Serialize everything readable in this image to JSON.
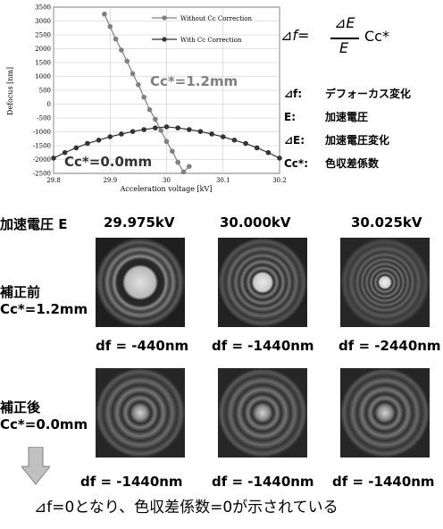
{
  "chart_data": {
    "type": "line",
    "xlabel": "Acceleration voltage [kV]",
    "ylabel": "Defocus [nm]",
    "xlim": [
      29.8,
      30.2
    ],
    "ylim": [
      -2500,
      3500
    ],
    "x_ticks": [
      "29.8",
      "29.9",
      "30",
      "30.1",
      "30.2"
    ],
    "y_ticks": [
      "3500",
      "3000",
      "2500",
      "2000",
      "1500",
      "1000",
      "500",
      "0",
      "-500",
      "-1000",
      "-1500",
      "-2000",
      "-2500"
    ],
    "grid": true,
    "legend_position": "top-right",
    "series": [
      {
        "name": "Without Cc Correction",
        "color": "#808080",
        "marker": "circle",
        "x": [
          29.89,
          29.9,
          29.91,
          29.92,
          29.93,
          29.94,
          29.95,
          29.96,
          29.97,
          29.98,
          29.99,
          30.0,
          30.01,
          30.02,
          30.03,
          30.04
        ],
        "y": [
          3250,
          2800,
          2350,
          1950,
          1550,
          1100,
          700,
          250,
          -200,
          -550,
          -950,
          -1350,
          -1700,
          -2100,
          -2450,
          -2250
        ]
      },
      {
        "name": "With Cc Correction",
        "color": "#333333",
        "marker": "circle",
        "x": [
          29.8,
          29.82,
          29.84,
          29.86,
          29.88,
          29.9,
          29.92,
          29.94,
          29.96,
          29.98,
          30.0,
          30.02,
          30.04,
          30.06,
          30.08,
          30.1,
          30.12,
          30.14,
          30.16,
          30.18,
          30.2
        ],
        "y": [
          -1950,
          -1750,
          -1580,
          -1420,
          -1300,
          -1180,
          -1080,
          -990,
          -920,
          -860,
          -820,
          -860,
          -920,
          -990,
          -1080,
          -1180,
          -1300,
          -1420,
          -1580,
          -1750,
          -1950
        ]
      }
    ],
    "annotations": [
      "Cc*=1.2mm",
      "Cc*=0.0mm"
    ]
  },
  "formula": {
    "lhs": "⊿f=",
    "numerator": "⊿E",
    "denominator": "E",
    "rhs": "Cc*"
  },
  "definitions": [
    {
      "symbol": "⊿f:",
      "text": "デフォーカス変化"
    },
    {
      "symbol": "E:",
      "text": "加速電圧"
    },
    {
      "symbol": "⊿E:",
      "text": "加速電圧変化"
    },
    {
      "symbol": "Cc*:",
      "text": "色収差係数"
    }
  ],
  "grid": {
    "corner_label": "加速電圧 E",
    "columns": [
      "29.975kV",
      "30.000kV",
      "30.025kV"
    ],
    "rows": [
      {
        "label_line1": "補正前",
        "label_line2": "Cc*=1.2mm",
        "df": [
          "df = -440nm",
          "df = -1440nm",
          "df = -2440nm"
        ]
      },
      {
        "label_line1": "補正後",
        "label_line2": "Cc*=0.0mm",
        "df": [
          "df = -1440nm",
          "df = -1440nm",
          "df = -1440nm"
        ]
      }
    ]
  },
  "conclusion": "⊿f=0となり、色収差係数=0が示されている"
}
